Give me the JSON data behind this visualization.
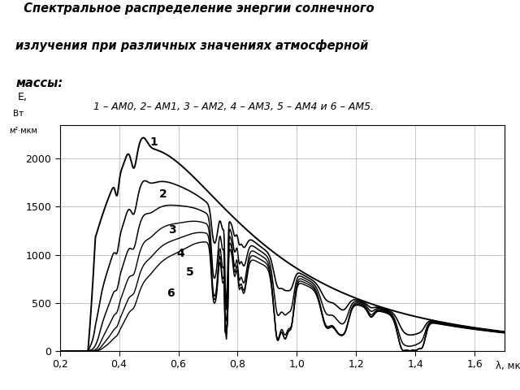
{
  "title_line1": "  Спектральное распределение энергии солнечного",
  "title_line2": "излучения при различных значениях атмосферной",
  "title_line3": "массы:",
  "subtitle": "1 – АМ0, 2– АМ1, 3 – АМ2, 4 – АМ3, 5 – АМ4 и 6 – АМ5.",
  "xlim": [
    0.2,
    1.7
  ],
  "ylim": [
    0,
    2350
  ],
  "xtick_vals": [
    0.2,
    0.4,
    0.6,
    0.8,
    1.0,
    1.2,
    1.4,
    1.6
  ],
  "ytick_vals": [
    0,
    500,
    1000,
    1500,
    2000
  ],
  "background_color": "#ffffff",
  "curve_color": "#000000",
  "grid_color": "#bbbbbb",
  "label_positions": [
    [
      0.505,
      2170,
      "1"
    ],
    [
      0.535,
      1630,
      "2"
    ],
    [
      0.565,
      1260,
      "3"
    ],
    [
      0.595,
      1010,
      "4"
    ],
    [
      0.625,
      820,
      "5"
    ],
    [
      0.56,
      600,
      "6"
    ]
  ]
}
